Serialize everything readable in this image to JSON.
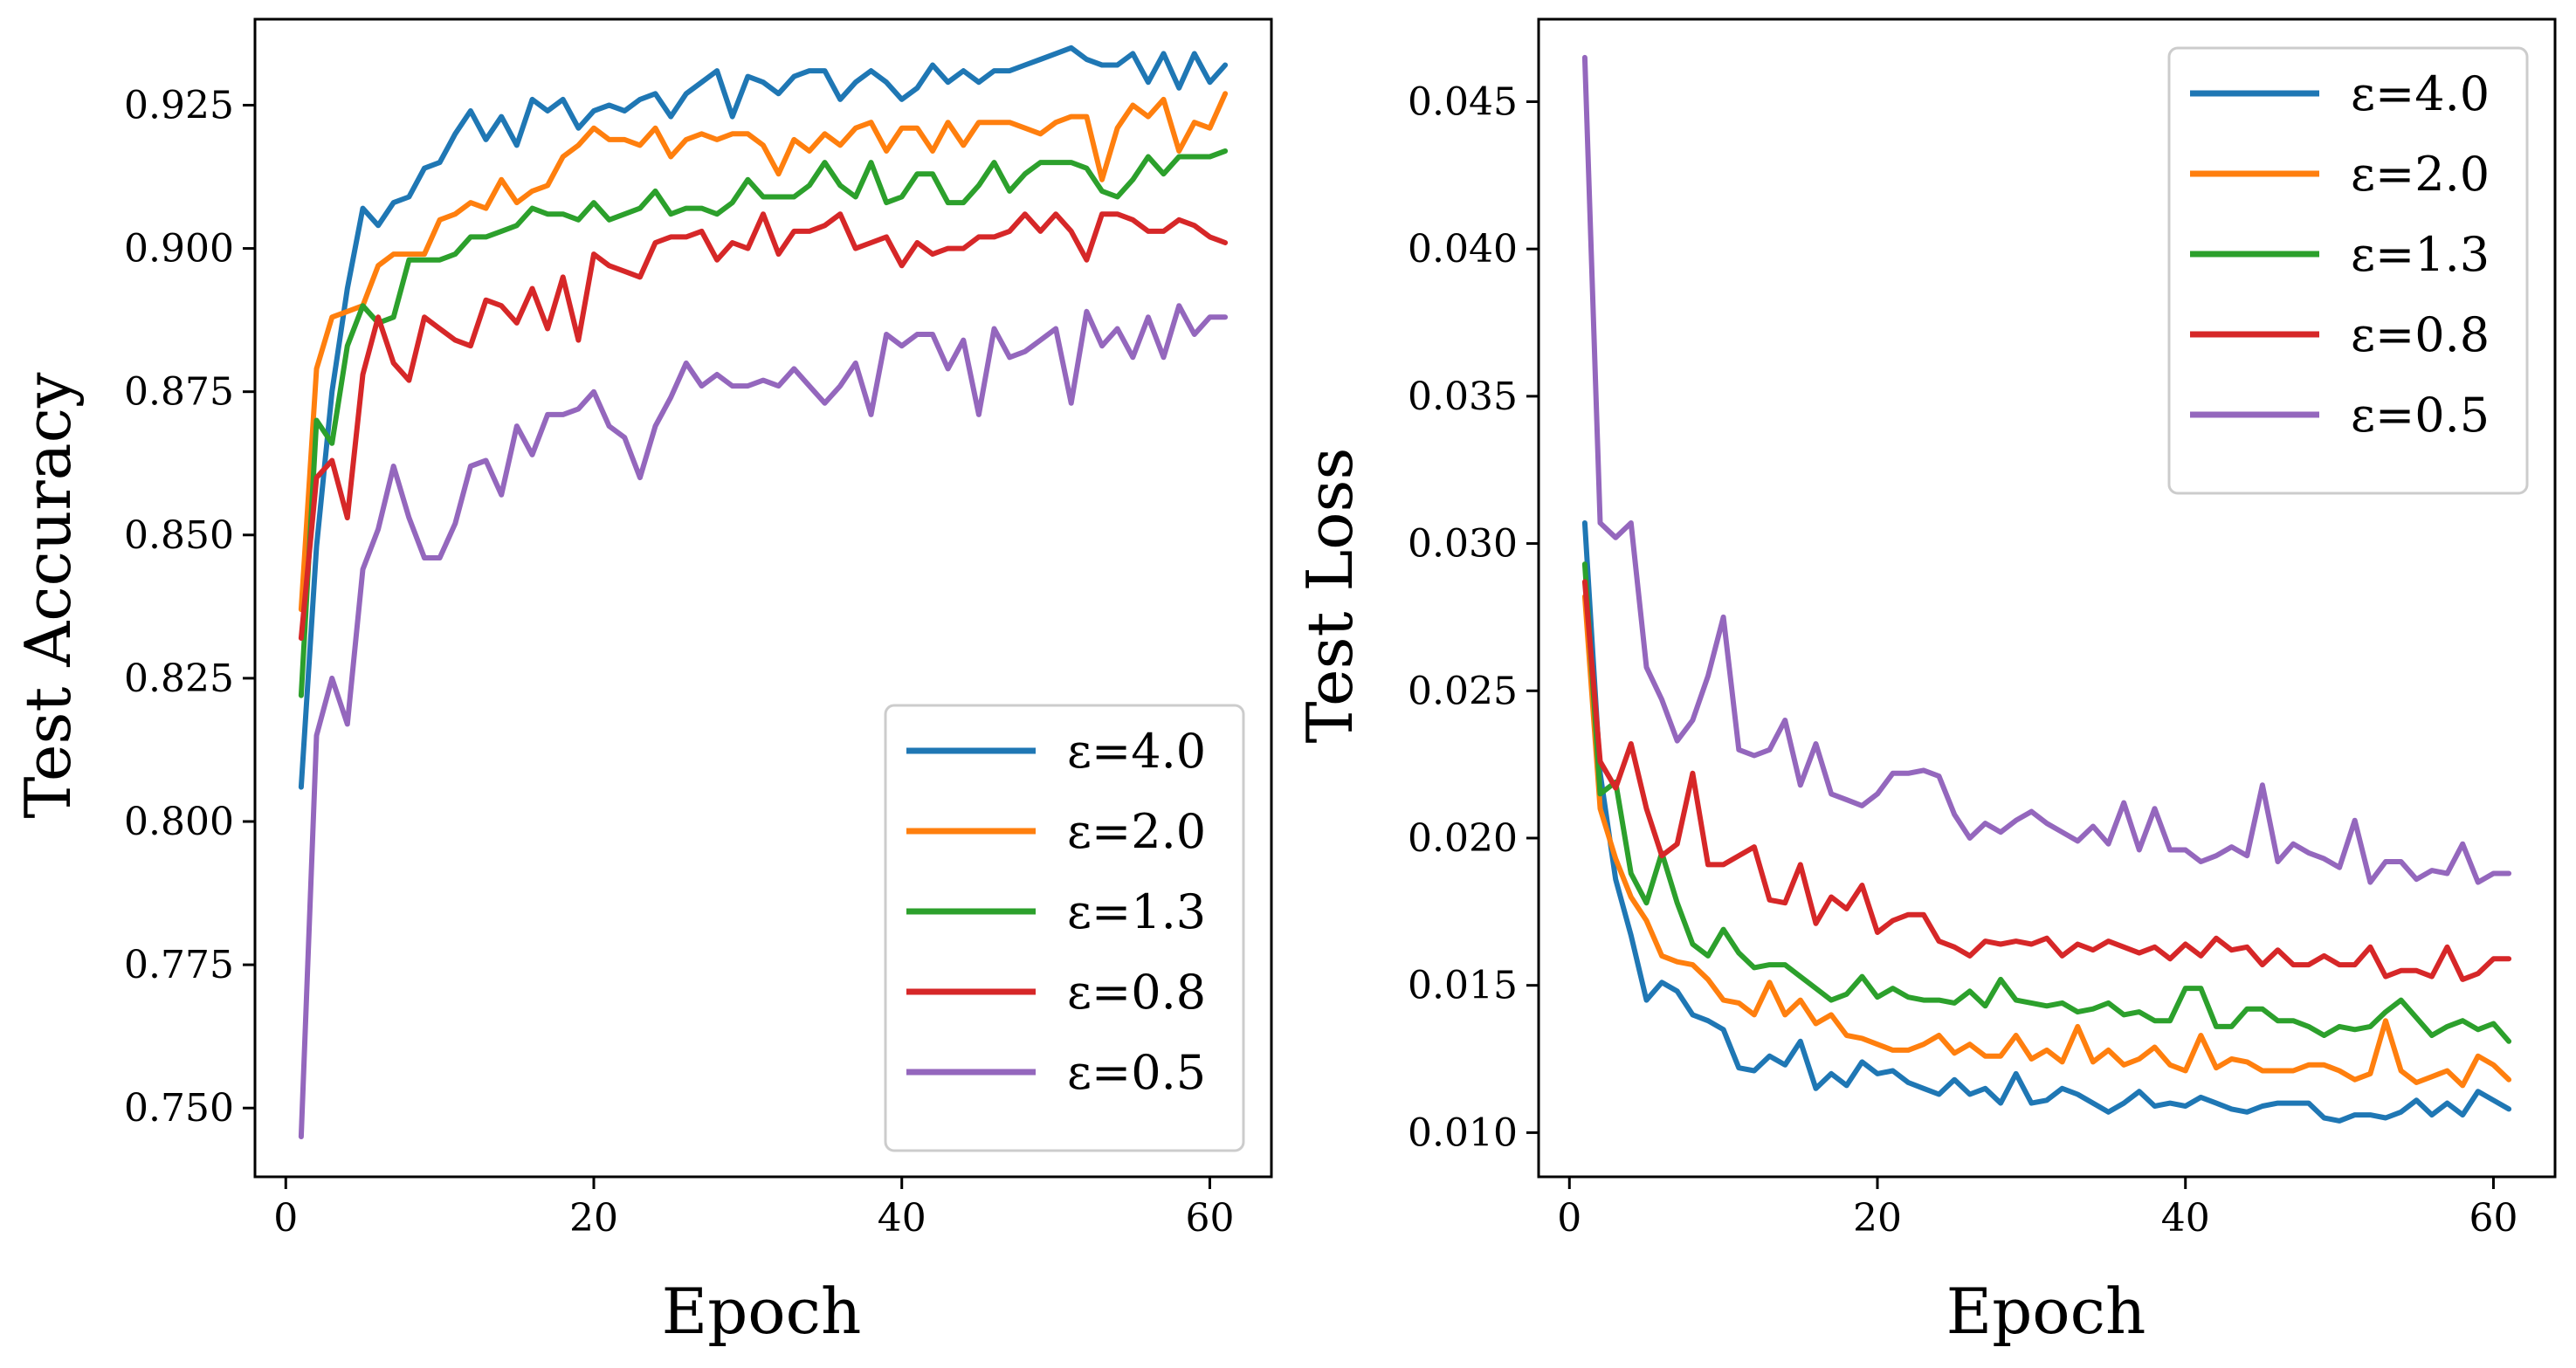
{
  "chart_data": [
    {
      "type": "line",
      "xlabel": "Epoch",
      "ylabel": "Test Accuracy",
      "xlim": [
        -2,
        64
      ],
      "ylim": [
        0.738,
        0.94
      ],
      "xticks": [
        0,
        20,
        40,
        60
      ],
      "xtick_labels": [
        "0",
        "20",
        "40",
        "60"
      ],
      "yticks": [
        0.75,
        0.775,
        0.8,
        0.825,
        0.85,
        0.875,
        0.9,
        0.925
      ],
      "ytick_labels": [
        "0.750",
        "0.775",
        "0.800",
        "0.825",
        "0.850",
        "0.875",
        "0.900",
        "0.925"
      ],
      "legend_position": "lower-right",
      "x": [
        1,
        2,
        3,
        4,
        5,
        6,
        7,
        8,
        9,
        10,
        11,
        12,
        13,
        14,
        15,
        16,
        17,
        18,
        19,
        20,
        21,
        22,
        23,
        24,
        25,
        26,
        27,
        28,
        29,
        30,
        31,
        32,
        33,
        34,
        35,
        36,
        37,
        38,
        39,
        40,
        41,
        42,
        43,
        44,
        45,
        46,
        47,
        48,
        49,
        50,
        51,
        52,
        53,
        54,
        55,
        56,
        57,
        58,
        59,
        60,
        61
      ],
      "series": [
        {
          "name": "ε=4.0",
          "color": "#1f77b4",
          "values": [
            0.806,
            0.848,
            0.875,
            0.893,
            0.907,
            0.904,
            0.908,
            0.909,
            0.914,
            0.915,
            0.92,
            0.924,
            0.919,
            0.923,
            0.918,
            0.926,
            0.924,
            0.926,
            0.921,
            0.924,
            0.925,
            0.924,
            0.926,
            0.927,
            0.923,
            0.927,
            0.929,
            0.931,
            0.923,
            0.93,
            0.929,
            0.927,
            0.93,
            0.931,
            0.931,
            0.926,
            0.929,
            0.931,
            0.929,
            0.926,
            0.928,
            0.932,
            0.929,
            0.931,
            0.929,
            0.931,
            0.931,
            0.932,
            0.933,
            0.934,
            0.935,
            0.933,
            0.932,
            0.932,
            0.934,
            0.929,
            0.934,
            0.928,
            0.934,
            0.929,
            0.932
          ]
        },
        {
          "name": "ε=2.0",
          "color": "#ff7f0e",
          "values": [
            0.837,
            0.879,
            0.888,
            0.889,
            0.89,
            0.897,
            0.899,
            0.899,
            0.899,
            0.905,
            0.906,
            0.908,
            0.907,
            0.912,
            0.908,
            0.91,
            0.911,
            0.916,
            0.918,
            0.921,
            0.919,
            0.919,
            0.918,
            0.921,
            0.916,
            0.919,
            0.92,
            0.919,
            0.92,
            0.92,
            0.918,
            0.913,
            0.919,
            0.917,
            0.92,
            0.918,
            0.921,
            0.922,
            0.917,
            0.921,
            0.921,
            0.917,
            0.922,
            0.918,
            0.922,
            0.922,
            0.922,
            0.921,
            0.92,
            0.922,
            0.923,
            0.923,
            0.912,
            0.921,
            0.925,
            0.923,
            0.926,
            0.917,
            0.922,
            0.921,
            0.927
          ]
        },
        {
          "name": "ε=1.3",
          "color": "#2ca02c",
          "values": [
            0.822,
            0.87,
            0.866,
            0.883,
            0.89,
            0.887,
            0.888,
            0.898,
            0.898,
            0.898,
            0.899,
            0.902,
            0.902,
            0.903,
            0.904,
            0.907,
            0.906,
            0.906,
            0.905,
            0.908,
            0.905,
            0.906,
            0.907,
            0.91,
            0.906,
            0.907,
            0.907,
            0.906,
            0.908,
            0.912,
            0.909,
            0.909,
            0.909,
            0.911,
            0.915,
            0.911,
            0.909,
            0.915,
            0.908,
            0.909,
            0.913,
            0.913,
            0.908,
            0.908,
            0.911,
            0.915,
            0.91,
            0.913,
            0.915,
            0.915,
            0.915,
            0.914,
            0.91,
            0.909,
            0.912,
            0.916,
            0.913,
            0.916,
            0.916,
            0.916,
            0.917
          ]
        },
        {
          "name": "ε=0.8",
          "color": "#d62728",
          "values": [
            0.832,
            0.86,
            0.863,
            0.853,
            0.878,
            0.888,
            0.88,
            0.877,
            0.888,
            0.886,
            0.884,
            0.883,
            0.891,
            0.89,
            0.887,
            0.893,
            0.886,
            0.895,
            0.884,
            0.899,
            0.897,
            0.896,
            0.895,
            0.901,
            0.902,
            0.902,
            0.903,
            0.898,
            0.901,
            0.9,
            0.906,
            0.899,
            0.903,
            0.903,
            0.904,
            0.906,
            0.9,
            0.901,
            0.902,
            0.897,
            0.901,
            0.899,
            0.9,
            0.9,
            0.902,
            0.902,
            0.903,
            0.906,
            0.903,
            0.906,
            0.903,
            0.898,
            0.906,
            0.906,
            0.905,
            0.903,
            0.903,
            0.905,
            0.904,
            0.902,
            0.901
          ]
        },
        {
          "name": "ε=0.5",
          "color": "#9467bd",
          "values": [
            0.745,
            0.815,
            0.825,
            0.817,
            0.844,
            0.851,
            0.862,
            0.853,
            0.846,
            0.846,
            0.852,
            0.862,
            0.863,
            0.857,
            0.869,
            0.864,
            0.871,
            0.871,
            0.872,
            0.875,
            0.869,
            0.867,
            0.86,
            0.869,
            0.874,
            0.88,
            0.876,
            0.878,
            0.876,
            0.876,
            0.877,
            0.876,
            0.879,
            0.876,
            0.873,
            0.876,
            0.88,
            0.871,
            0.885,
            0.883,
            0.885,
            0.885,
            0.879,
            0.884,
            0.871,
            0.886,
            0.881,
            0.882,
            0.884,
            0.886,
            0.873,
            0.889,
            0.883,
            0.886,
            0.881,
            0.888,
            0.881,
            0.89,
            0.885,
            0.888,
            0.888
          ]
        }
      ]
    },
    {
      "type": "line",
      "xlabel": "Epoch",
      "ylabel": "Test Loss",
      "xlim": [
        -2,
        64
      ],
      "ylim": [
        0.0085,
        0.0478
      ],
      "xticks": [
        0,
        20,
        40,
        60
      ],
      "xtick_labels": [
        "0",
        "20",
        "40",
        "60"
      ],
      "yticks": [
        0.01,
        0.015,
        0.02,
        0.025,
        0.03,
        0.035,
        0.04,
        0.045
      ],
      "ytick_labels": [
        "0.010",
        "0.015",
        "0.020",
        "0.025",
        "0.030",
        "0.035",
        "0.040",
        "0.045"
      ],
      "legend_position": "upper-right",
      "x": [
        1,
        2,
        3,
        4,
        5,
        6,
        7,
        8,
        9,
        10,
        11,
        12,
        13,
        14,
        15,
        16,
        17,
        18,
        19,
        20,
        21,
        22,
        23,
        24,
        25,
        26,
        27,
        28,
        29,
        30,
        31,
        32,
        33,
        34,
        35,
        36,
        37,
        38,
        39,
        40,
        41,
        42,
        43,
        44,
        45,
        46,
        47,
        48,
        49,
        50,
        51,
        52,
        53,
        54,
        55,
        56,
        57,
        58,
        59,
        60,
        61
      ],
      "series": [
        {
          "name": "ε=4.0",
          "color": "#1f77b4",
          "values": [
            0.0307,
            0.0222,
            0.0186,
            0.0167,
            0.0145,
            0.0151,
            0.0148,
            0.014,
            0.0138,
            0.0135,
            0.0122,
            0.0121,
            0.0126,
            0.0123,
            0.0131,
            0.0115,
            0.012,
            0.0116,
            0.0124,
            0.012,
            0.0121,
            0.0117,
            0.0115,
            0.0113,
            0.0118,
            0.0113,
            0.0115,
            0.011,
            0.012,
            0.011,
            0.0111,
            0.0115,
            0.0113,
            0.011,
            0.0107,
            0.011,
            0.0114,
            0.0109,
            0.011,
            0.0109,
            0.0112,
            0.011,
            0.0108,
            0.0107,
            0.0109,
            0.011,
            0.011,
            0.011,
            0.0105,
            0.0104,
            0.0106,
            0.0106,
            0.0105,
            0.0107,
            0.0111,
            0.0106,
            0.011,
            0.0106,
            0.0114,
            0.0111,
            0.0108
          ]
        },
        {
          "name": "ε=2.0",
          "color": "#ff7f0e",
          "values": [
            0.0282,
            0.021,
            0.0193,
            0.018,
            0.0172,
            0.016,
            0.0158,
            0.0157,
            0.0152,
            0.0145,
            0.0144,
            0.014,
            0.0151,
            0.014,
            0.0145,
            0.0137,
            0.014,
            0.0133,
            0.0132,
            0.013,
            0.0128,
            0.0128,
            0.013,
            0.0133,
            0.0127,
            0.013,
            0.0126,
            0.0126,
            0.0133,
            0.0125,
            0.0128,
            0.0124,
            0.0136,
            0.0124,
            0.0128,
            0.0123,
            0.0125,
            0.0129,
            0.0123,
            0.0121,
            0.0133,
            0.0122,
            0.0125,
            0.0124,
            0.0121,
            0.0121,
            0.0121,
            0.0123,
            0.0123,
            0.0121,
            0.0118,
            0.012,
            0.0138,
            0.0121,
            0.0117,
            0.0119,
            0.0121,
            0.0116,
            0.0126,
            0.0123,
            0.0118
          ]
        },
        {
          "name": "ε=1.3",
          "color": "#2ca02c",
          "values": [
            0.0293,
            0.0215,
            0.0219,
            0.0188,
            0.0178,
            0.0195,
            0.0178,
            0.0164,
            0.016,
            0.0169,
            0.0161,
            0.0156,
            0.0157,
            0.0157,
            0.0153,
            0.0149,
            0.0145,
            0.0147,
            0.0153,
            0.0146,
            0.0149,
            0.0146,
            0.0145,
            0.0145,
            0.0144,
            0.0148,
            0.0143,
            0.0152,
            0.0145,
            0.0144,
            0.0143,
            0.0144,
            0.0141,
            0.0142,
            0.0144,
            0.014,
            0.0141,
            0.0138,
            0.0138,
            0.0149,
            0.0149,
            0.0136,
            0.0136,
            0.0142,
            0.0142,
            0.0138,
            0.0138,
            0.0136,
            0.0133,
            0.0136,
            0.0135,
            0.0136,
            0.0141,
            0.0145,
            0.0139,
            0.0133,
            0.0136,
            0.0138,
            0.0135,
            0.0137,
            0.0131
          ]
        },
        {
          "name": "ε=0.8",
          "color": "#d62728",
          "values": [
            0.0287,
            0.0226,
            0.0217,
            0.0232,
            0.021,
            0.0194,
            0.0198,
            0.0222,
            0.0191,
            0.0191,
            0.0194,
            0.0197,
            0.0179,
            0.0178,
            0.0191,
            0.0171,
            0.018,
            0.0176,
            0.0184,
            0.0168,
            0.0172,
            0.0174,
            0.0174,
            0.0165,
            0.0163,
            0.016,
            0.0165,
            0.0164,
            0.0165,
            0.0164,
            0.0166,
            0.016,
            0.0164,
            0.0162,
            0.0165,
            0.0163,
            0.0161,
            0.0163,
            0.0159,
            0.0164,
            0.016,
            0.0166,
            0.0162,
            0.0163,
            0.0157,
            0.0162,
            0.0157,
            0.0157,
            0.016,
            0.0157,
            0.0157,
            0.0163,
            0.0153,
            0.0155,
            0.0155,
            0.0153,
            0.0163,
            0.0152,
            0.0154,
            0.0159,
            0.0159
          ]
        },
        {
          "name": "ε=0.5",
          "color": "#9467bd",
          "values": [
            0.0465,
            0.0307,
            0.0302,
            0.0307,
            0.0258,
            0.0247,
            0.0233,
            0.024,
            0.0255,
            0.0275,
            0.023,
            0.0228,
            0.023,
            0.024,
            0.0218,
            0.0232,
            0.0215,
            0.0213,
            0.0211,
            0.0215,
            0.0222,
            0.0222,
            0.0223,
            0.0221,
            0.0208,
            0.02,
            0.0205,
            0.0202,
            0.0206,
            0.0209,
            0.0205,
            0.0202,
            0.0199,
            0.0204,
            0.0198,
            0.0212,
            0.0196,
            0.021,
            0.0196,
            0.0196,
            0.0192,
            0.0194,
            0.0197,
            0.0194,
            0.0218,
            0.0192,
            0.0198,
            0.0195,
            0.0193,
            0.019,
            0.0206,
            0.0185,
            0.0192,
            0.0192,
            0.0186,
            0.0189,
            0.0188,
            0.0198,
            0.0185,
            0.0188,
            0.0188
          ]
        }
      ]
    }
  ]
}
